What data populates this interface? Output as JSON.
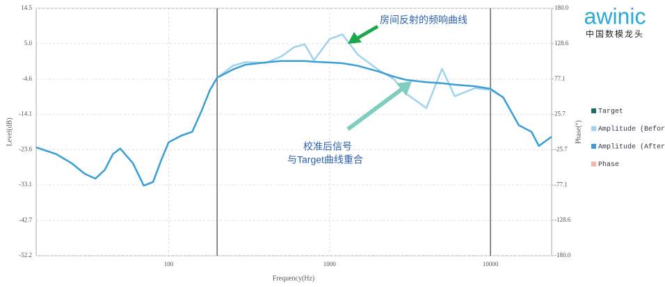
{
  "chart_data": {
    "type": "line",
    "x": [
      15,
      20,
      25,
      30,
      35,
      40,
      45,
      50,
      60,
      70,
      80,
      90,
      100,
      120,
      140,
      160,
      180,
      200,
      250,
      300,
      400,
      500,
      600,
      700,
      800,
      1000,
      1200,
      1500,
      2000,
      2500,
      3000,
      4000,
      5000,
      6000,
      8000,
      10000,
      12000,
      15000,
      18000,
      20000,
      24000
    ],
    "series": [
      {
        "name": "Target",
        "color": "#1d6b6e",
        "values": [
          null,
          null,
          null,
          null,
          null,
          null,
          null,
          null,
          null,
          null,
          null,
          null,
          null,
          null,
          null,
          null,
          null,
          -4.2,
          -2.0,
          -0.7,
          -0.1,
          0.3,
          0.3,
          0.3,
          0.1,
          -0.1,
          -0.3,
          -1.0,
          -2.5,
          -3.9,
          -4.8,
          -5.4,
          -5.7,
          -6.1,
          -6.5,
          -7.2,
          null,
          null,
          null,
          null,
          null
        ]
      },
      {
        "name": "Amplitude (Before)",
        "color": "#9fd2ec",
        "values": [
          -23.0,
          -24.8,
          -27.3,
          -30.1,
          -31.4,
          -29.1,
          -24.8,
          -23.3,
          -27.3,
          -33.3,
          -32.3,
          -26.3,
          -21.6,
          -19.8,
          -18.8,
          -13.2,
          -7.6,
          -4.2,
          -1.0,
          0.0,
          -0.2,
          1.5,
          4.0,
          4.8,
          0.5,
          6.2,
          7.5,
          2.0,
          -2.0,
          -4.5,
          -8.5,
          -12.4,
          -1.8,
          -9.2,
          -7.0,
          -7.5,
          -9.5,
          -17.0,
          -18.8,
          -22.6,
          -20.1
        ]
      },
      {
        "name": "Amplitude (After)",
        "color": "#3a9fd6",
        "values": [
          -23.0,
          -24.8,
          -27.3,
          -30.1,
          -31.4,
          -29.1,
          -24.8,
          -23.3,
          -27.3,
          -33.3,
          -32.3,
          -26.3,
          -21.6,
          -19.8,
          -18.8,
          -13.2,
          -7.6,
          -4.2,
          -2.0,
          -0.7,
          -0.1,
          0.3,
          0.3,
          0.3,
          0.1,
          -0.1,
          -0.3,
          -1.0,
          -2.5,
          -3.9,
          -4.8,
          -5.4,
          -5.7,
          -6.1,
          -6.5,
          -7.2,
          -9.5,
          -17.0,
          -18.8,
          -22.6,
          -20.1
        ]
      },
      {
        "name": "Phase",
        "color": "#f2b8a8",
        "axis": "y2",
        "values": [
          null,
          null,
          null,
          null,
          null,
          null,
          null,
          null,
          null,
          null,
          null,
          null,
          null,
          null,
          null,
          null,
          null,
          null,
          null,
          null,
          null,
          null,
          null,
          null,
          null,
          null,
          null,
          null,
          null,
          null,
          null,
          null,
          null,
          null,
          null,
          null,
          null,
          null,
          null,
          null,
          null
        ]
      }
    ],
    "xlabel": "Frequency(Hz)",
    "ylabel": "Level(dB)",
    "y2label": "Phase(°)",
    "xscale": "log",
    "xlim": [
      15,
      24000
    ],
    "xticks": [
      100,
      1000,
      10000
    ],
    "ylim": [
      -52.2,
      14.5
    ],
    "yticks": [
      14.5,
      {
        "value": 5,
        "label": "5.0"
      },
      -4.6,
      -14.1,
      -23.6,
      -33.1,
      -42.7,
      -52.2
    ],
    "y2lim": [
      -180,
      180
    ],
    "y2ticks": [
      {
        "value": 180,
        "label": "180.0"
      },
      128.6,
      77.1,
      25.7,
      -25.7,
      -77.1,
      -128.6,
      {
        "value": -180,
        "label": "-180.0"
      }
    ],
    "range_lines": [
      200,
      10000
    ],
    "grid": true,
    "legend": "right",
    "annotations": [
      "房间反射的频响曲线",
      "校准后信号",
      "与Target曲线重合"
    ],
    "logo": {
      "name": "awinic",
      "tagline": "中国数模龙头"
    }
  }
}
